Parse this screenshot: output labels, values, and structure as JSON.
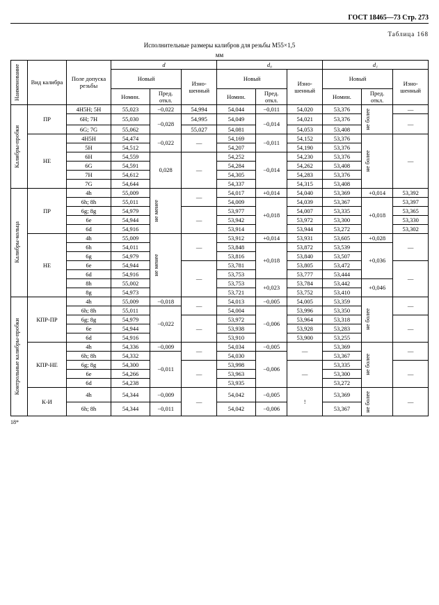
{
  "header": {
    "gost": "ГОСТ 18465—73 Стр. 273",
    "table_no": "Таблица 168",
    "title": "Исполнительные размеры калибров для резьбы М55×1,5",
    "unit": "мм",
    "footer": "18*"
  },
  "columns": {
    "name": "Наименование",
    "vid": "Вид калибра",
    "pole": "Поле допуска резьбы",
    "d": "d",
    "d0": "d₀",
    "d1": "d₁",
    "novy": "Новый",
    "nomin": "Номин.",
    "pred": "Пред. откл.",
    "izn": "Изно-шенный",
    "ne_menee": "не менее",
    "ne_bolee": "не более"
  },
  "groups": [
    {
      "name": "Калибры-пробки",
      "sections": [
        {
          "label": "ПР",
          "rows": [
            {
              "pole": "4H5H; 5H",
              "d_nom": "55,023",
              "d_pred": "−0,022",
              "d_izn": "54,994",
              "d0_nom": "54,044",
              "d0_pred": "−0,011",
              "d0_izn": "54,020",
              "d1_nom": "53,376",
              "d1_pred": "не более",
              "d1_izn": "—"
            },
            {
              "pole": "6H; 7H",
              "d_nom": "55,030",
              "d_pred": "−0,028",
              "d_izn": "54,995",
              "d0_nom": "54,049",
              "d0_pred": "−0,014",
              "d0_izn": "54,021",
              "d1_nom": "53,376",
              "d1_pred": "",
              "d1_izn": "—"
            },
            {
              "pole": "6G; 7G",
              "d_nom": "55,062",
              "d_pred": "",
              "d_izn": "55,027",
              "d0_nom": "54,081",
              "d0_pred": "",
              "d0_izn": "54,053",
              "d1_nom": "53,408",
              "d1_pred": "",
              "d1_izn": ""
            }
          ]
        },
        {
          "label": "НЕ",
          "rows": [
            {
              "pole": "4H5H",
              "d_nom": "54,474",
              "d_pred": "−0,022",
              "d_izn": "—",
              "d0_nom": "54,169",
              "d0_pred": "−0,011",
              "d0_izn": "54,152",
              "d1_nom": "53,376",
              "d1_pred": "не более",
              "d1_izn": "—"
            },
            {
              "pole": "5H",
              "d_nom": "54,512",
              "d_pred": "",
              "d_izn": "",
              "d0_nom": "54,207",
              "d0_pred": "",
              "d0_izn": "54,190",
              "d1_nom": "53,376",
              "d1_pred": "",
              "d1_izn": ""
            },
            {
              "pole": "6H",
              "d_nom": "54,559",
              "d_pred": "0,028",
              "d_izn": "—",
              "d0_nom": "54,252",
              "d0_pred": "−0,014",
              "d0_izn": "54,230",
              "d1_nom": "53,376",
              "d1_pred": "",
              "d1_izn": ""
            },
            {
              "pole": "6G",
              "d_nom": "54,591",
              "d_pred": "",
              "d_izn": "",
              "d0_nom": "54,284",
              "d0_pred": "",
              "d0_izn": "54,262",
              "d1_nom": "53,408",
              "d1_pred": "",
              "d1_izn": ""
            },
            {
              "pole": "7H",
              "d_nom": "54,612",
              "d_pred": "",
              "d_izn": "",
              "d0_nom": "54,305",
              "d0_pred": "",
              "d0_izn": "54,283",
              "d1_nom": "53,376",
              "d1_pred": "",
              "d1_izn": ""
            },
            {
              "pole": "7G",
              "d_nom": "54,644",
              "d_pred": "",
              "d_izn": "",
              "d0_nom": "54,337",
              "d0_pred": "",
              "d0_izn": "54,315",
              "d1_nom": "53,408",
              "d1_pred": "",
              "d1_izn": ""
            }
          ]
        }
      ]
    },
    {
      "name": "Калибры-кольца",
      "sections": [
        {
          "label": "ПР",
          "rows": [
            {
              "pole": "4h",
              "d_nom": "55,009",
              "d_pred": "не менее",
              "d_izn": "—",
              "d0_nom": "54,017",
              "d0_pred": "+0,014",
              "d0_izn": "54,040",
              "d1_nom": "53,369",
              "d1_pred": "+0,014",
              "d1_izn": "53,392"
            },
            {
              "pole": "6h; 8h",
              "d_nom": "55,011",
              "d_pred": "",
              "d_izn": "",
              "d0_nom": "54,009",
              "d0_pred": "+0,018",
              "d0_izn": "54,039",
              "d1_nom": "53,367",
              "d1_pred": "+0,018",
              "d1_izn": "53,397"
            },
            {
              "pole": "6g; 8g",
              "d_nom": "54,979",
              "d_pred": "",
              "d_izn": "—",
              "d0_nom": "53,977",
              "d0_pred": "",
              "d0_izn": "54,007",
              "d1_nom": "53,335",
              "d1_pred": "",
              "d1_izn": "53,365"
            },
            {
              "pole": "6e",
              "d_nom": "54,944",
              "d_pred": "",
              "d_izn": "",
              "d0_nom": "53,942",
              "d0_pred": "",
              "d0_izn": "53,972",
              "d1_nom": "53,300",
              "d1_pred": "",
              "d1_izn": "53,330"
            },
            {
              "pole": "6d",
              "d_nom": "54,916",
              "d_pred": "",
              "d_izn": "",
              "d0_nom": "53,914",
              "d0_pred": "",
              "d0_izn": "53,944",
              "d1_nom": "53,272",
              "d1_pred": "",
              "d1_izn": "53,302"
            }
          ]
        },
        {
          "label": "НЕ",
          "rows": [
            {
              "pole": "4h",
              "d_nom": "55,009",
              "d_pred": "не менее",
              "d_izn": "—",
              "d0_nom": "53,912",
              "d0_pred": "+0,014",
              "d0_izn": "53,931",
              "d1_nom": "53,605",
              "d1_pred": "+0,028",
              "d1_izn": "—"
            },
            {
              "pole": "6h",
              "d_nom": "54,011",
              "d_pred": "",
              "d_izn": "",
              "d0_nom": "53,848",
              "d0_pred": "+0,018",
              "d0_izn": "53,872",
              "d1_nom": "53,539",
              "d1_pred": "+0,036",
              "d1_izn": ""
            },
            {
              "pole": "6g",
              "d_nom": "54,979",
              "d_pred": "",
              "d_izn": "",
              "d0_nom": "53,816",
              "d0_pred": "",
              "d0_izn": "53,840",
              "d1_nom": "53,507",
              "d1_pred": "",
              "d1_izn": ""
            },
            {
              "pole": "6e",
              "d_nom": "54,944",
              "d_pred": "",
              "d_izn": "—",
              "d0_nom": "53,781",
              "d0_pred": "",
              "d0_izn": "53,805",
              "d1_nom": "53,472",
              "d1_pred": "",
              "d1_izn": "—"
            },
            {
              "pole": "6d",
              "d_nom": "54,916",
              "d_pred": "",
              "d_izn": "",
              "d0_nom": "53,753",
              "d0_pred": "",
              "d0_izn": "53,777",
              "d1_nom": "53,444",
              "d1_pred": "",
              "d1_izn": ""
            },
            {
              "pole": "8h",
              "d_nom": "55,002",
              "d_pred": "",
              "d_izn": "",
              "d0_nom": "53,753",
              "d0_pred": "+0,023",
              "d0_izn": "53,784",
              "d1_nom": "53,442",
              "d1_pred": "+0,046",
              "d1_izn": ""
            },
            {
              "pole": "8g",
              "d_nom": "54,973",
              "d_pred": "",
              "d_izn": "",
              "d0_nom": "53,721",
              "d0_pred": "",
              "d0_izn": "53,752",
              "d1_nom": "53,410",
              "d1_pred": "",
              "d1_izn": ""
            }
          ]
        }
      ]
    },
    {
      "name": "Контрольные калибры-пробки",
      "sections": [
        {
          "label": "КПР-ПР",
          "rows": [
            {
              "pole": "4h",
              "d_nom": "55,009",
              "d_pred": "−0,018",
              "d_izn": "—",
              "d0_nom": "54,013",
              "d0_pred": "−0,005",
              "d0_izn": "54,005",
              "d1_nom": "53,359",
              "d1_pred": "не более",
              "d1_izn": "—"
            },
            {
              "pole": "6h; 8h",
              "d_nom": "55,011",
              "d_pred": "−0,022",
              "d_izn": "",
              "d0_nom": "54,004",
              "d0_pred": "−0,006",
              "d0_izn": "53,996",
              "d1_nom": "53,350",
              "d1_pred": "",
              "d1_izn": ""
            },
            {
              "pole": "6g; 8g",
              "d_nom": "54,979",
              "d_pred": "",
              "d_izn": "—",
              "d0_nom": "53,972",
              "d0_pred": "",
              "d0_izn": "53,964",
              "d1_nom": "53,318",
              "d1_pred": "",
              "d1_izn": "—"
            },
            {
              "pole": "6e",
              "d_nom": "54,944",
              "d_pred": "",
              "d_izn": "",
              "d0_nom": "53,938",
              "d0_pred": "",
              "d0_izn": "53,928",
              "d1_nom": "53,283",
              "d1_pred": "",
              "d1_izn": ""
            },
            {
              "pole": "6d",
              "d_nom": "54,916",
              "d_pred": "",
              "d_izn": "",
              "d0_nom": "53,910",
              "d0_pred": "",
              "d0_izn": "53,900",
              "d1_nom": "53,255",
              "d1_pred": "",
              "d1_izn": ""
            }
          ]
        },
        {
          "label": "КПР-НЕ",
          "rows": [
            {
              "pole": "4h",
              "d_nom": "54,336",
              "d_pred": "−0,009",
              "d_izn": "—",
              "d0_nom": "54,034",
              "d0_pred": "−0,005",
              "d0_izn": "—",
              "d1_nom": "53,369",
              "d1_pred": "не более",
              "d1_izn": "—"
            },
            {
              "pole": "6h; 8h",
              "d_nom": "54,332",
              "d_pred": "−0,011",
              "d_izn": "",
              "d0_nom": "54,030",
              "d0_pred": "−0,006",
              "d0_izn": "",
              "d1_nom": "53,367",
              "d1_pred": "",
              "d1_izn": ""
            },
            {
              "pole": "6g; 8g",
              "d_nom": "54,300",
              "d_pred": "",
              "d_izn": "—",
              "d0_nom": "53,998",
              "d0_pred": "",
              "d0_izn": "—",
              "d1_nom": "53,335",
              "d1_pred": "",
              "d1_izn": "—"
            },
            {
              "pole": "6e",
              "d_nom": "54,266",
              "d_pred": "",
              "d_izn": "",
              "d0_nom": "53,963",
              "d0_pred": "",
              "d0_izn": "",
              "d1_nom": "53,300",
              "d1_pred": "",
              "d1_izn": ""
            },
            {
              "pole": "6d",
              "d_nom": "54,238",
              "d_pred": "",
              "d_izn": "",
              "d0_nom": "53,935",
              "d0_pred": "",
              "d0_izn": "",
              "d1_nom": "53,272",
              "d1_pred": "",
              "d1_izn": ""
            }
          ]
        },
        {
          "label": "К-И",
          "rows": [
            {
              "pole": "4h",
              "d_nom": "54,344",
              "d_pred": "−0,009",
              "d_izn": "—",
              "d0_nom": "54,042",
              "d0_pred": "−0,005",
              "d0_izn": "!",
              "d1_nom": "53,369",
              "d1_pred": "не более",
              "d1_izn": "—"
            },
            {
              "pole": "6h; 8h",
              "d_nom": "54,344",
              "d_pred": "−0,011",
              "d_izn": "",
              "d0_nom": "54,042",
              "d0_pred": "−0,006",
              "d0_izn": "",
              "d1_nom": "53,367",
              "d1_pred": "",
              "d1_izn": ""
            }
          ]
        }
      ]
    }
  ]
}
